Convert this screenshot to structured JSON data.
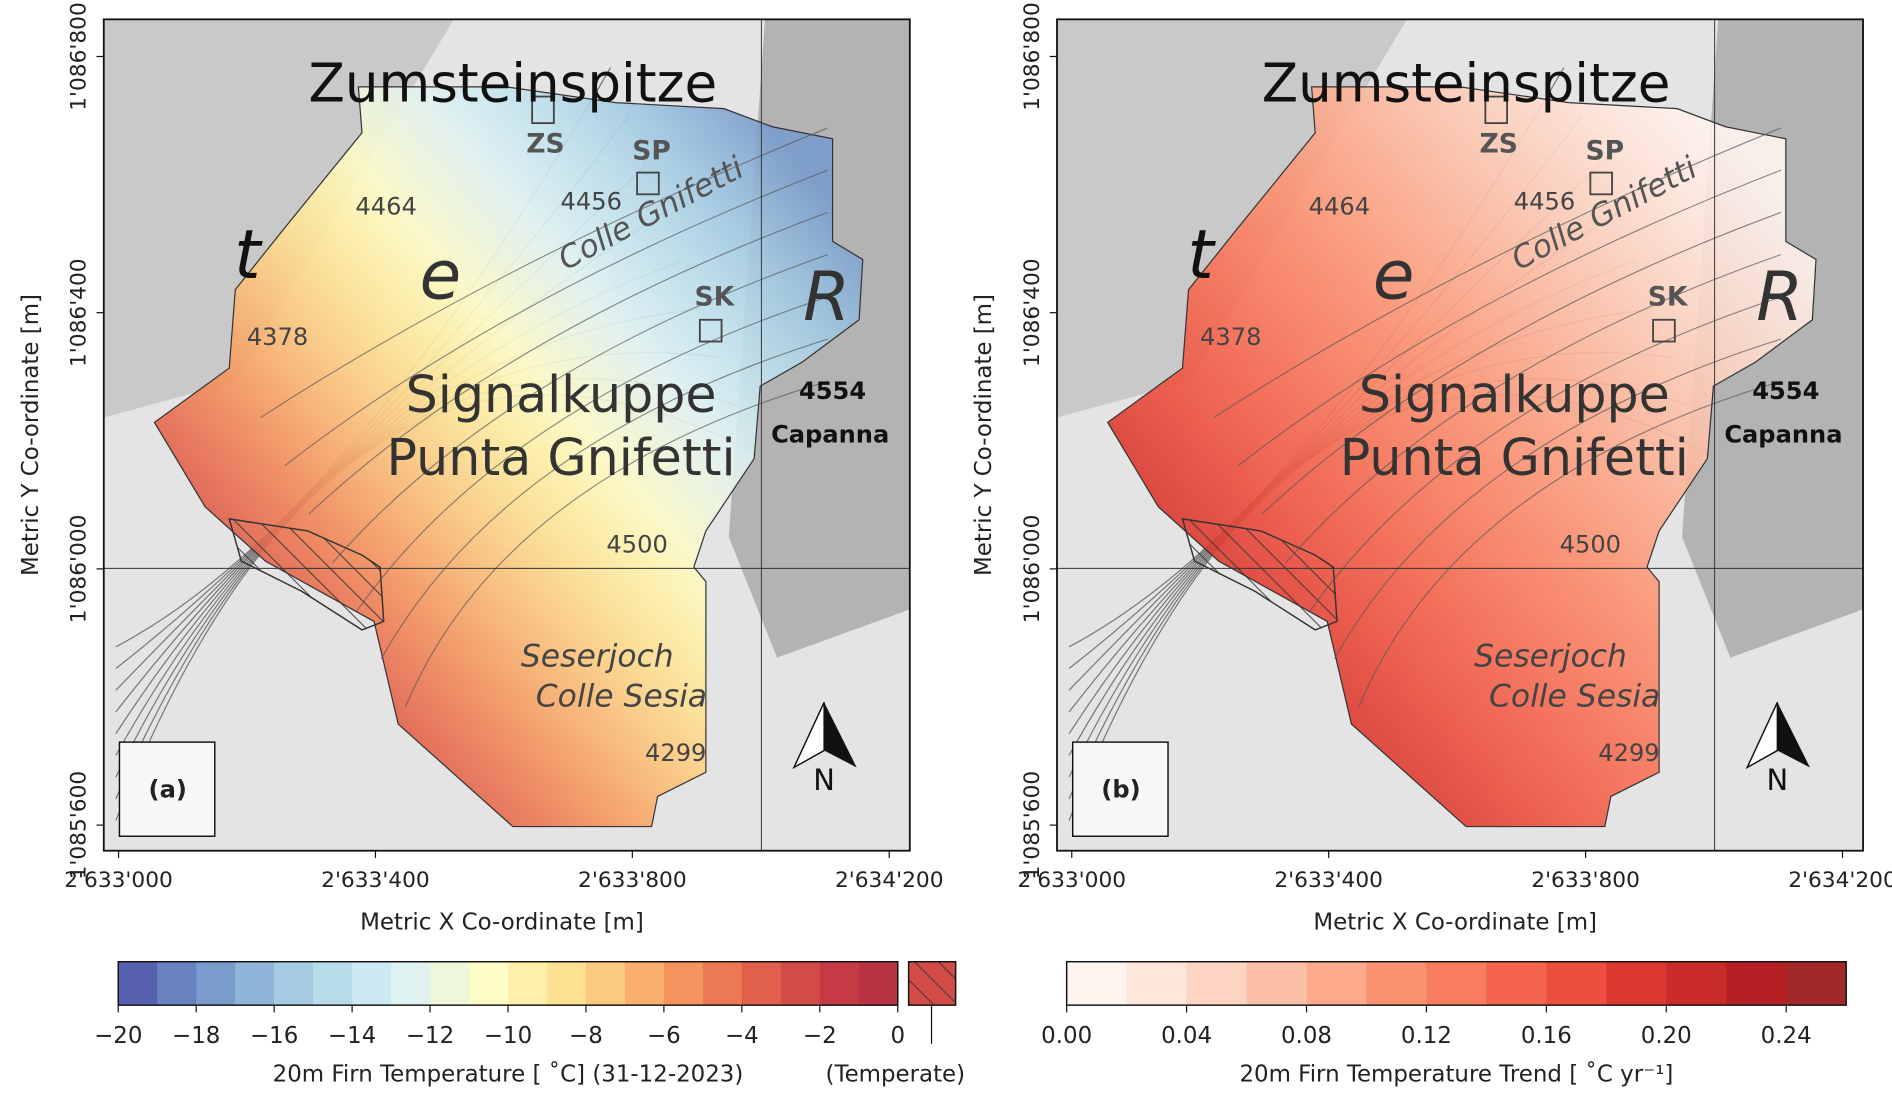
{
  "panels": [
    {
      "label": "(a)",
      "x_label": "Metric X Co-ordinate [m]",
      "y_label": "Metric Y Co-ordinate [m]",
      "xlim": [
        2632977,
        2634232
      ],
      "ylim": [
        1085560,
        1086858
      ],
      "xticks": [
        {
          "value": 2633000,
          "label": "2'633'000"
        },
        {
          "value": 2633400,
          "label": "2'633'400"
        },
        {
          "value": 2633800,
          "label": "2'633'800"
        },
        {
          "value": 2634200,
          "label": "2'634'200"
        }
      ],
      "yticks": [
        {
          "value": 1085600,
          "label": "1'085'600"
        },
        {
          "value": 1086000,
          "label": "1'086'000"
        },
        {
          "value": 1086400,
          "label": "1'086'400"
        },
        {
          "value": 1086800,
          "label": "1'086'800"
        }
      ]
    },
    {
      "label": "(b)",
      "x_label": "Metric X Co-ordinate [m]",
      "y_label": "Metric Y Co-ordinate [m]",
      "xlim": [
        2632977,
        2634232
      ],
      "ylim": [
        1085560,
        1086858
      ],
      "xticks": [
        {
          "value": 2633000,
          "label": "2'633'000"
        },
        {
          "value": 2633400,
          "label": "2'633'400"
        },
        {
          "value": 2633800,
          "label": "2'633'800"
        },
        {
          "value": 2634200,
          "label": "2'634'200"
        }
      ],
      "yticks": [
        {
          "value": 1085600,
          "label": "1'085'600"
        },
        {
          "value": 1086000,
          "label": "1'086'000"
        },
        {
          "value": 1086400,
          "label": "1'086'400"
        },
        {
          "value": 1086800,
          "label": "1'086'800"
        }
      ]
    }
  ],
  "map_labels": [
    "Zumsteinspitze",
    "ZS",
    "SP",
    "4456",
    "Colle Gnifetti",
    "4464",
    "t",
    "e",
    "R",
    "SK",
    "4378",
    "Signalkuppe",
    "Punta Gnifetti",
    "4554",
    "Capanna",
    "4500",
    "Seserjoch",
    "Colle Sesia",
    "4299",
    "N"
  ],
  "colorbars": [
    {
      "label": "20m Firn Temperature [ ˚C] (31-12-2023)",
      "range": [
        -20,
        0
      ],
      "colors": [
        "#5860b0",
        "#6a82c0",
        "#7a9ccc",
        "#8fb5d8",
        "#a5cbe3",
        "#b8dcea",
        "#cce8f0",
        "#e1f2f2",
        "#eef6dc",
        "#fdfbc6",
        "#fef0a8",
        "#fde092",
        "#fcc980",
        "#f9af6e",
        "#f4935e",
        "#ec7854",
        "#e0604c",
        "#d34b47",
        "#c63a45",
        "#b83243"
      ],
      "ticks": [
        {
          "value": -20,
          "label": "−20"
        },
        {
          "value": -18,
          "label": "−18"
        },
        {
          "value": -16,
          "label": "−16"
        },
        {
          "value": -14,
          "label": "−14"
        },
        {
          "value": -12,
          "label": "−12"
        },
        {
          "value": -10,
          "label": "−10"
        },
        {
          "value": -8,
          "label": "−8"
        },
        {
          "value": -6,
          "label": "−6"
        },
        {
          "value": -4,
          "label": "−4"
        },
        {
          "value": -2,
          "label": "−2"
        },
        0
      ],
      "hatch_label": "(Temperate)"
    },
    {
      "label": "20m Firn Temperature Trend [ ˚C yr⁻¹]",
      "range": [
        0,
        0.26
      ],
      "colors": [
        "#fff5f0",
        "#fee6dc",
        "#fdd4c2",
        "#fcbfa7",
        "#fca98c",
        "#fc9272",
        "#f97c5f",
        "#f5654d",
        "#ec4f3e",
        "#dc3a30",
        "#c92b28",
        "#b52025",
        "#a2282c"
      ],
      "ticks": [
        {
          "value": 0,
          "label": "0.00"
        },
        0.04,
        {
          "value": 0.08,
          "label": "0.08"
        },
        0.12,
        0.16,
        {
          "value": 0.2,
          "label": "0.20"
        },
        0.24
      ]
    }
  ]
}
